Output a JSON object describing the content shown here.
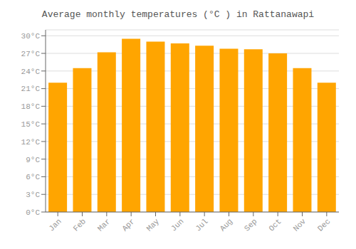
{
  "chart_data": {
    "type": "bar",
    "title": "Average monthly temperatures (°C ) in Rattanawapi",
    "categories": [
      "Jan",
      "Feb",
      "Mar",
      "Apr",
      "May",
      "Jun",
      "Jul",
      "Aug",
      "Sep",
      "Oct",
      "Nov",
      "Dec"
    ],
    "values": [
      22.0,
      24.5,
      27.2,
      29.5,
      29.0,
      28.7,
      28.3,
      27.8,
      27.7,
      27.0,
      24.5,
      22.0
    ],
    "color": "#FFA500",
    "ylim": [
      0,
      31
    ],
    "yticks": [
      {
        "value": 0,
        "label": "0°C"
      },
      {
        "value": 3,
        "label": "3°C"
      },
      {
        "value": 6,
        "label": "6°C"
      },
      {
        "value": 9,
        "label": "9°C"
      },
      {
        "value": 12,
        "label": "12°C"
      },
      {
        "value": 15,
        "label": "15°C"
      },
      {
        "value": 18,
        "label": "18°C"
      },
      {
        "value": 21,
        "label": "21°C"
      },
      {
        "value": 24,
        "label": "24°C"
      },
      {
        "value": 27,
        "label": "27°C"
      },
      {
        "value": 30,
        "label": "30°C"
      }
    ],
    "grid": true
  }
}
